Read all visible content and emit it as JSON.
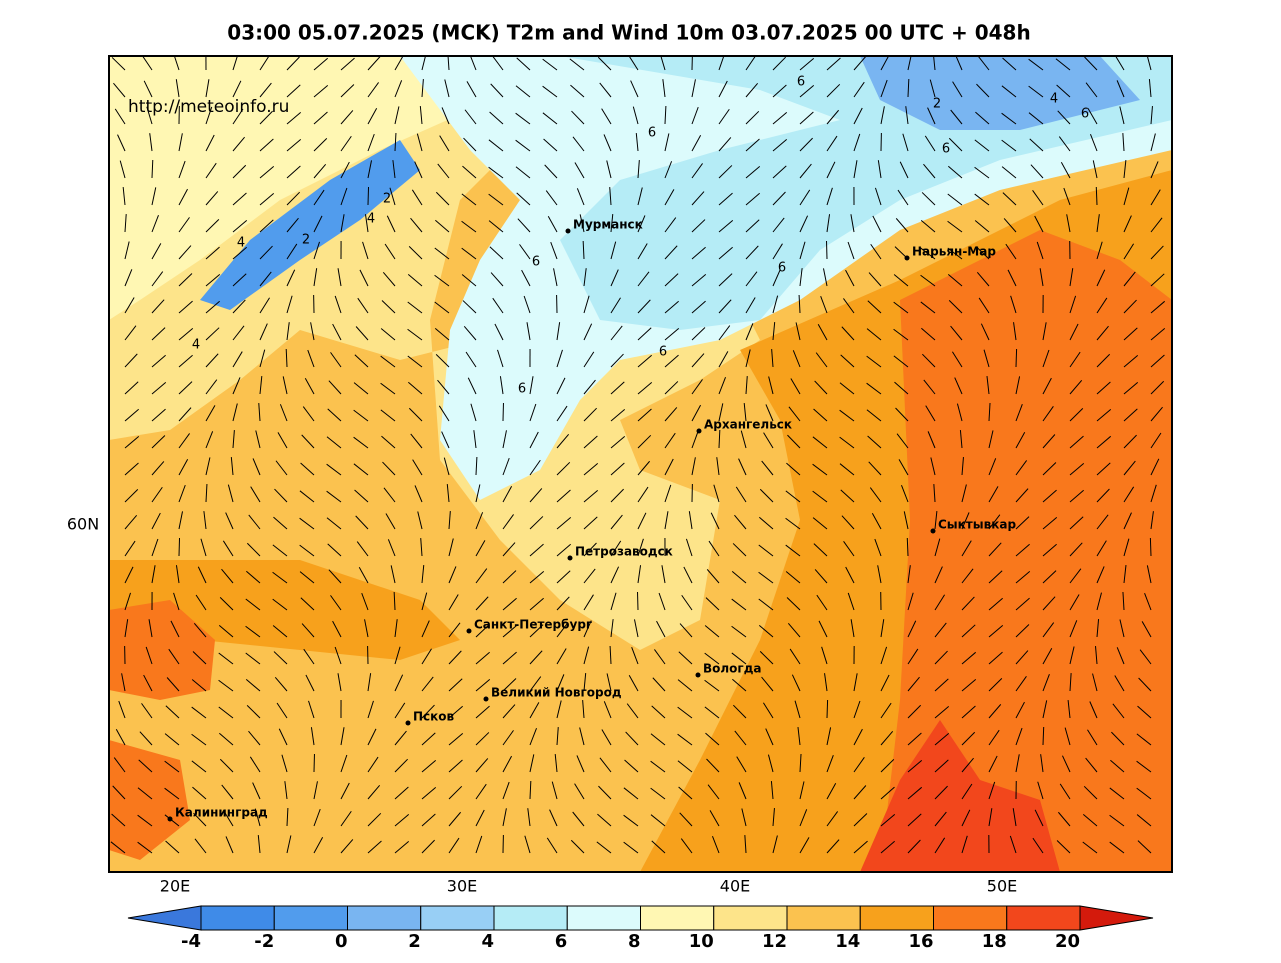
{
  "header": {
    "title": "03:00 05.07.2025 (MCK) T2m and Wind 10m 03.07.2025 00 UTC + 048h"
  },
  "map": {
    "source": "http://meteoinfo.ru",
    "lon_labels": [
      "20E",
      "30E",
      "40E",
      "50E"
    ],
    "lat_labels": [
      "60N"
    ],
    "cities": [
      "Мурманск",
      "Нарьян-Мар",
      "Архангельск",
      "Сыктывкар",
      "Петрозаводск",
      "Санкт-Петербург",
      "Вологда",
      "Великий Новгород",
      "Псков",
      "Калининград"
    ],
    "contour_labels": [
      "6",
      "6",
      "6",
      "6",
      "6",
      "6",
      "6",
      "6",
      "2",
      "2",
      "2",
      "4",
      "4",
      "4",
      "4"
    ]
  },
  "colorbar": {
    "ticks": [
      -4,
      -2,
      0,
      2,
      4,
      6,
      8,
      10,
      12,
      14,
      16,
      18,
      20
    ],
    "colors": [
      "#3a78dc",
      "#3f8be8",
      "#519ced",
      "#79b5f1",
      "#98cff5",
      "#b5ecf6",
      "#dcfbfc",
      "#fff7b3",
      "#fde48a",
      "#fbc24f",
      "#f7a11c",
      "#f9781c",
      "#f2471c",
      "#d41a0c"
    ]
  }
}
